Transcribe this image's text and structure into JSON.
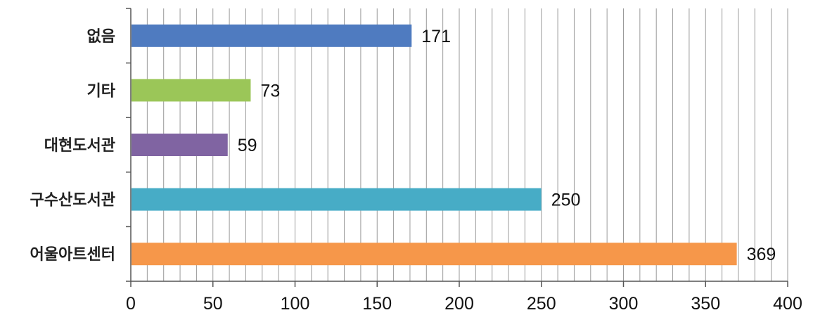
{
  "chart_data": {
    "type": "bar",
    "orientation": "horizontal",
    "categories": [
      "없음",
      "기타",
      "대현도서관",
      "구수산도서관",
      "어울아트센터"
    ],
    "values": [
      171,
      73,
      59,
      250,
      369
    ],
    "value_labels": [
      "171",
      "73",
      "59",
      "250",
      "369"
    ],
    "colors": [
      "#4F7BC0",
      "#9BC658",
      "#8064A2",
      "#47ACC6",
      "#F6974A"
    ],
    "xlim": [
      0,
      400
    ],
    "x_ticks": [
      0,
      50,
      100,
      150,
      200,
      250,
      300,
      350,
      400
    ],
    "x_tick_labels": [
      "0",
      "50",
      "100",
      "150",
      "200",
      "250",
      "300",
      "350",
      "400"
    ],
    "minor_tick_step": 10,
    "grid": "vertical",
    "legend": "none",
    "title": "",
    "xlabel": "",
    "ylabel": ""
  }
}
